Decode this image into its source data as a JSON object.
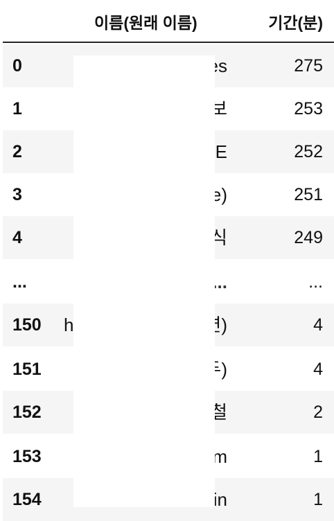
{
  "table": {
    "columns": [
      "",
      "이름(원래 이름)",
      "기간(분)"
    ],
    "rows": [
      {
        "index": "0",
        "name_tail": "es",
        "duration": "275"
      },
      {
        "index": "1",
        "name_tail": "보",
        "duration": "253"
      },
      {
        "index": "2",
        "name_tail": "E",
        "duration": "252"
      },
      {
        "index": "3",
        "name_tail": "e)",
        "duration": "251"
      },
      {
        "index": "4",
        "name_tail": "식",
        "duration": "249"
      },
      {
        "index": "...",
        "name_tail": "...",
        "duration": "..."
      },
      {
        "index": "150",
        "name_prefix": "h",
        "name_tail": "련)",
        "duration": "4"
      },
      {
        "index": "151",
        "name_tail": "두)",
        "duration": "4"
      },
      {
        "index": "152",
        "name_tail": "철",
        "duration": "2"
      },
      {
        "index": "153",
        "name_tail": "m",
        "duration": "1"
      },
      {
        "index": "154",
        "name_tail": "in",
        "duration": "1"
      }
    ]
  }
}
